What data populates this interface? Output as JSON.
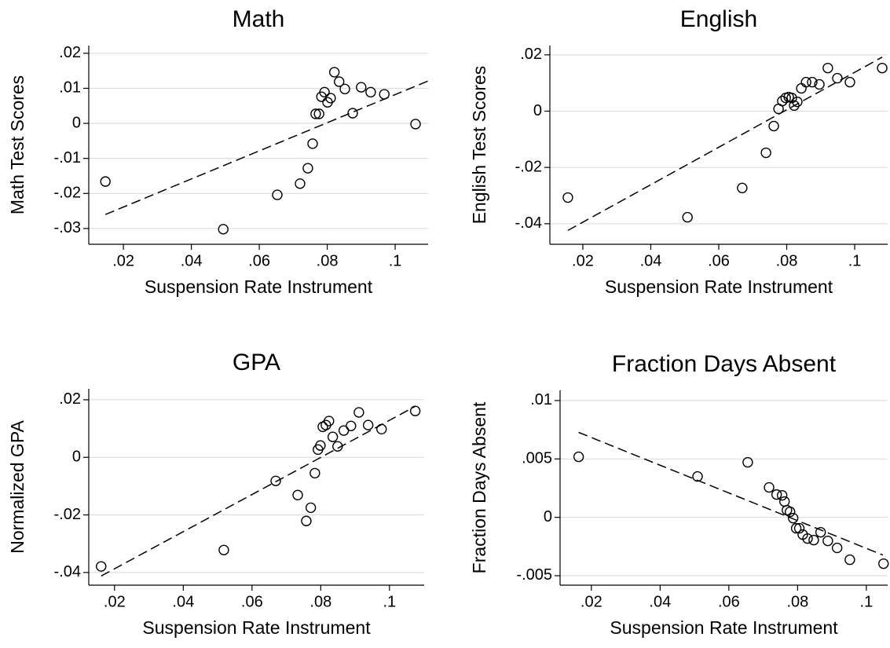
{
  "chart_data": [
    {
      "type": "scatter",
      "title": "Math",
      "xlabel": "Suspension Rate Instrument",
      "ylabel": "Math Test Scores",
      "x": [
        0.0147,
        0.0494,
        0.0653,
        0.072,
        0.0743,
        0.0757,
        0.0766,
        0.0776,
        0.0783,
        0.0792,
        0.0801,
        0.081,
        0.0821,
        0.0835,
        0.0852,
        0.0875,
        0.09,
        0.0928,
        0.0968,
        0.106
      ],
      "y": [
        -0.0166,
        -0.0302,
        -0.0204,
        -0.0172,
        -0.0128,
        -0.0058,
        0.0027,
        0.0027,
        0.0076,
        0.0089,
        0.006,
        0.0072,
        0.0146,
        0.0119,
        0.0098,
        0.0029,
        0.0103,
        0.0089,
        0.0083,
        -0.0002
      ],
      "fit_line": {
        "x": [
          0.0147,
          0.1097
        ],
        "y": [
          -0.026,
          0.0121
        ]
      },
      "xlim": [
        0.0098,
        0.1097
      ],
      "ylim": [
        -0.0345,
        0.0222
      ],
      "xticks": [
        {
          "value": 0.02,
          "label": ".02"
        },
        {
          "value": 0.04,
          "label": ".04"
        },
        {
          "value": 0.06,
          "label": ".06"
        },
        {
          "value": 0.08,
          "label": ".08"
        },
        {
          "value": 0.1,
          "label": ".1"
        }
      ],
      "yticks": [
        {
          "value": 0.02,
          "label": ".02"
        },
        {
          "value": 0.01,
          "label": ".01"
        },
        0,
        {
          "value": -0.01,
          "label": "-.01"
        },
        {
          "value": -0.02,
          "label": "-.02"
        },
        {
          "value": -0.03,
          "label": "-.03"
        }
      ],
      "grid": true,
      "color": "#000000"
    },
    {
      "type": "scatter",
      "title": "English",
      "xlabel": "Suspension Rate Instrument",
      "ylabel": "English Test Scores",
      "x": [
        0.0156,
        0.0508,
        0.0669,
        0.0739,
        0.0762,
        0.0776,
        0.0787,
        0.0797,
        0.0806,
        0.0815,
        0.0822,
        0.0831,
        0.0843,
        0.0857,
        0.0875,
        0.0896,
        0.0921,
        0.0949,
        0.0986,
        0.1081
      ],
      "y": [
        -0.0307,
        -0.0377,
        -0.0273,
        -0.0148,
        -0.0053,
        0.0008,
        0.0036,
        0.0047,
        0.005,
        0.0047,
        0.002,
        0.0033,
        0.0081,
        0.0103,
        0.0103,
        0.0095,
        0.0153,
        0.0117,
        0.0103,
        0.0153
      ],
      "fit_line": {
        "x": [
          0.0156,
          0.1081
        ],
        "y": [
          -0.0424,
          0.0192
        ]
      },
      "xlim": [
        0.0103,
        0.1097
      ],
      "ylim": [
        -0.0473,
        0.0233
      ],
      "xticks": [
        {
          "value": 0.02,
          "label": ".02"
        },
        {
          "value": 0.04,
          "label": ".04"
        },
        {
          "value": 0.06,
          "label": ".06"
        },
        {
          "value": 0.08,
          "label": ".08"
        },
        {
          "value": 0.1,
          "label": ".1"
        }
      ],
      "yticks": [
        {
          "value": 0.02,
          "label": ".02"
        },
        0,
        {
          "value": -0.02,
          "label": "-.02"
        },
        {
          "value": -0.04,
          "label": "-.04"
        }
      ],
      "grid": true,
      "color": "#000000"
    },
    {
      "type": "scatter",
      "title": "GPA",
      "xlabel": "Suspension Rate Instrument",
      "ylabel": "Normalized GPA",
      "x": [
        0.0161,
        0.0518,
        0.0669,
        0.0733,
        0.0758,
        0.0771,
        0.0783,
        0.0792,
        0.0799,
        0.0806,
        0.0815,
        0.0824,
        0.0835,
        0.0849,
        0.0867,
        0.0888,
        0.0911,
        0.0938,
        0.0977,
        0.1075
      ],
      "y": [
        -0.0379,
        -0.0322,
        -0.0082,
        -0.0131,
        -0.0221,
        -0.0175,
        -0.0055,
        0.0027,
        0.0041,
        0.0106,
        0.0112,
        0.0126,
        0.0071,
        0.0038,
        0.0093,
        0.0109,
        0.0156,
        0.0112,
        0.0098,
        0.0161
      ],
      "fit_line": {
        "x": [
          0.0161,
          0.1075
        ],
        "y": [
          -0.0412,
          0.0177
        ]
      },
      "xlim": [
        0.0125,
        0.1101
      ],
      "ylim": [
        -0.0444,
        0.0238
      ],
      "xticks": [
        {
          "value": 0.02,
          "label": ".02"
        },
        {
          "value": 0.04,
          "label": ".04"
        },
        {
          "value": 0.06,
          "label": ".06"
        },
        {
          "value": 0.08,
          "label": ".08"
        },
        {
          "value": 0.1,
          "label": ".1"
        }
      ],
      "yticks": [
        {
          "value": 0.02,
          "label": ".02"
        },
        0,
        {
          "value": -0.02,
          "label": "-.02"
        },
        {
          "value": -0.04,
          "label": "-.04"
        }
      ],
      "grid": true,
      "color": "#000000"
    },
    {
      "type": "scatter",
      "title": "Fraction Days Absent",
      "xlabel": "Suspension Rate Instrument",
      "ylabel": "Fraction Days Absent",
      "x": [
        0.0163,
        0.0509,
        0.0655,
        0.0717,
        0.0739,
        0.0755,
        0.0762,
        0.0769,
        0.0778,
        0.0787,
        0.0796,
        0.0805,
        0.0815,
        0.0829,
        0.0847,
        0.0867,
        0.0888,
        0.0915,
        0.0952,
        0.105
      ],
      "y": [
        0.00518,
        0.0035,
        0.00471,
        0.00256,
        0.00195,
        0.00188,
        0.00135,
        0.00061,
        0.00047,
        -7e-05,
        -0.00094,
        -0.00094,
        -0.00148,
        -0.00182,
        -0.00195,
        -0.00128,
        -0.00202,
        -0.00262,
        -0.00363,
        -0.00397
      ],
      "fit_line": {
        "x": [
          0.0163,
          0.1048
        ],
        "y": [
          0.00727,
          -0.00323
        ]
      },
      "xlim": [
        0.0109,
        0.1062
      ],
      "ylim": [
        -0.00581,
        0.01087
      ],
      "xticks": [
        {
          "value": 0.02,
          "label": ".02"
        },
        {
          "value": 0.04,
          "label": ".04"
        },
        {
          "value": 0.06,
          "label": ".06"
        },
        {
          "value": 0.08,
          "label": ".08"
        },
        {
          "value": 0.1,
          "label": ".1"
        }
      ],
      "yticks": [
        {
          "value": 0.01,
          "label": ".01"
        },
        {
          "value": 0.005,
          "label": ".005"
        },
        0,
        {
          "value": -0.005,
          "label": "-.005"
        }
      ],
      "grid": true,
      "color": "#000000"
    }
  ]
}
